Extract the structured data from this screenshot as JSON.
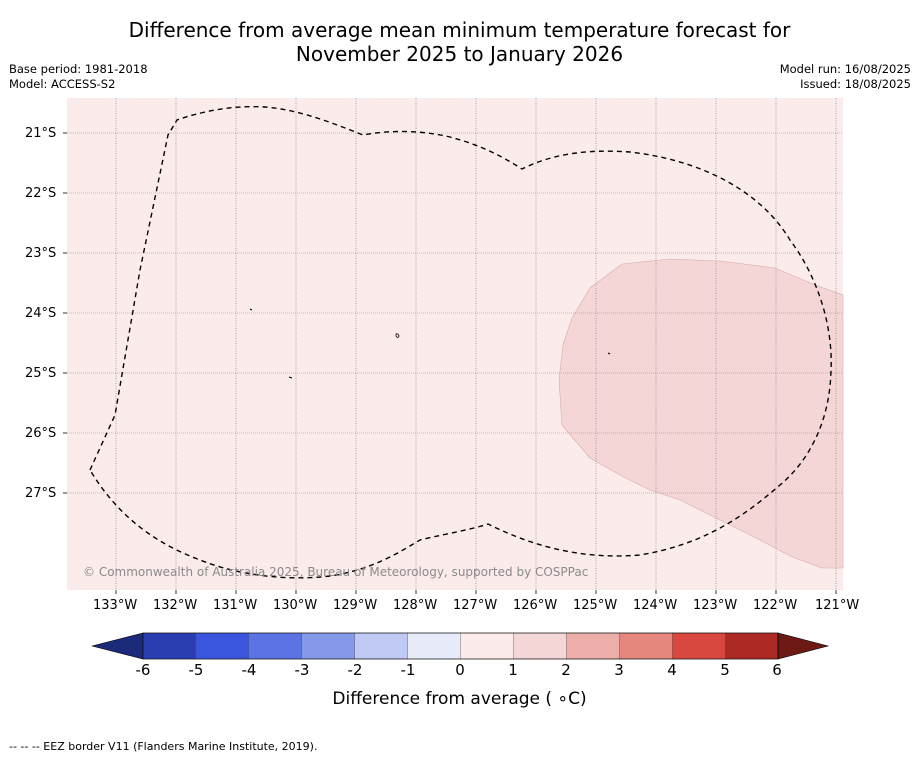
{
  "title_line1": "Difference from average mean minimum temperature forecast for",
  "title_line2": "November 2025 to January 2026",
  "meta_left": {
    "base_period": "Base period: 1981-2018",
    "model": "Model: ACCESS-S2"
  },
  "meta_right": {
    "model_run": "Model run: 16/08/2025",
    "issued": "Issued: 18/08/2025"
  },
  "copyright": "© Commonwealth of Australia 2025, Bureau of Meteorology, supported by COSPPac",
  "map": {
    "lat_labels": [
      "21°S",
      "22°S",
      "23°S",
      "24°S",
      "25°S",
      "26°S",
      "27°S"
    ],
    "lon_labels": [
      "133°W",
      "132°W",
      "131°W",
      "130°W",
      "129°W",
      "128°W",
      "127°W",
      "126°W",
      "125°W",
      "124°W",
      "123°W",
      "122°W",
      "121°W"
    ],
    "background_category": "0 to 1",
    "warm_area_category": "1 to 2",
    "border_label": "EEZ border V11"
  },
  "colorbar": {
    "ticks": [
      "-6",
      "-5",
      "-4",
      "-3",
      "-2",
      "-1",
      "0",
      "1",
      "2",
      "3",
      "4",
      "5",
      "6"
    ],
    "colors": [
      "#1b2a7a",
      "#2a3eb1",
      "#3a55de",
      "#5c73e4",
      "#8599ea",
      "#c0c8f4",
      "#e8ebfa",
      "#fbeceb",
      "#f4d6d6",
      "#ecaea9",
      "#e5867f",
      "#d9483e",
      "#ad2a24",
      "#6e1a14"
    ],
    "label": "Difference from average ( ∘C)"
  },
  "footnote": "--  --  -- EEZ border V11 (Flanders Marine Institute, 2019)."
}
